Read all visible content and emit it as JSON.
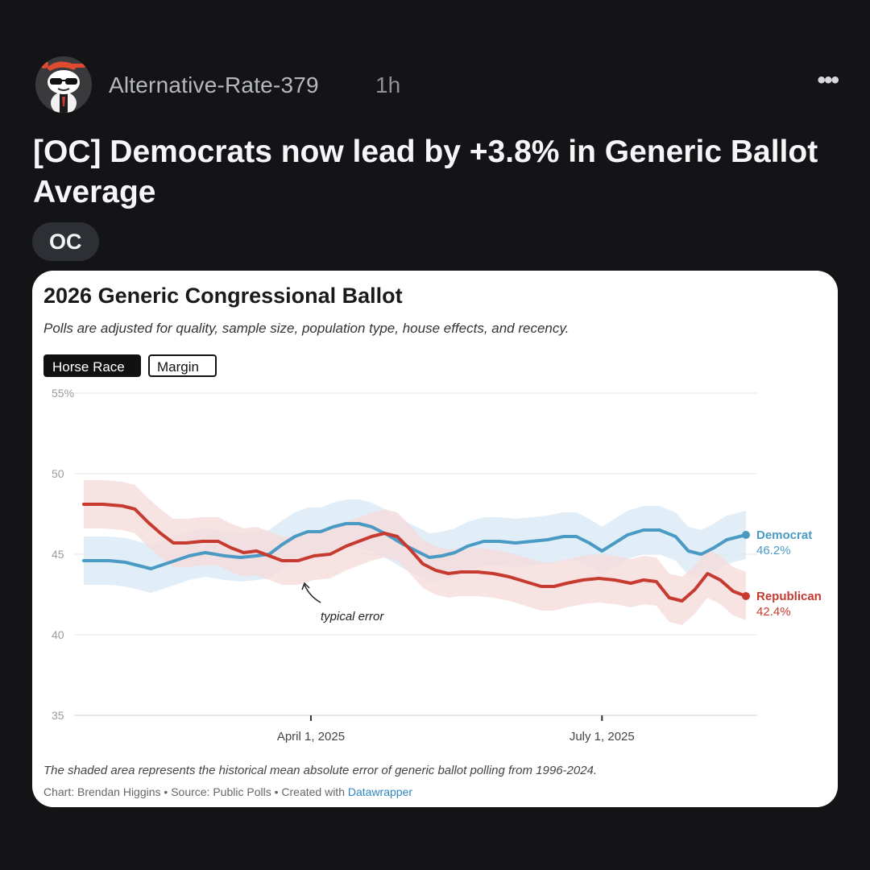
{
  "post": {
    "username": "Alternative-Rate-379",
    "time": "1h",
    "more_icon": "more-horizontal-icon",
    "title": "[OC] Democrats now lead by +3.8% in Generic Ballot Average",
    "flair": "OC"
  },
  "card": {
    "title": "2026 Generic Congressional Ballot",
    "subtitle": "Polls are adjusted for quality, sample size, population type, house effects, and recency.",
    "tabs": {
      "horse_race": "Horse Race",
      "margin": "Margin"
    },
    "note": "The shaded area represents the historical mean absolute error of generic ballot polling from 1996-2024.",
    "credit_prefix": "Chart: Brendan Higgins • Source: Public Polls • Created with ",
    "credit_link": "Datawrapper"
  },
  "chart_data": {
    "type": "line",
    "title": "2026 Generic Congressional Ballot",
    "subtitle": "Polls are adjusted for quality, sample size, population type, house effects, and recency.",
    "y_ticks": [
      "55%",
      "50",
      "45",
      "40",
      "35"
    ],
    "ylim": [
      35,
      55
    ],
    "x_range": [
      "2025-01-20",
      "2025-08-15"
    ],
    "x_ticks": [
      {
        "date": "2025-04-01",
        "label": "April 1, 2025"
      },
      {
        "date": "2025-07-01",
        "label": "July 1, 2025"
      }
    ],
    "error_band": 1.5,
    "annotation": {
      "text": "typical error"
    },
    "series": [
      {
        "name": "Democrat",
        "end_label": "46.2%",
        "color": "#4a9ac4",
        "band_color": "#d7e8f6",
        "points": [
          [
            "2025-01-20",
            44.6
          ],
          [
            "2025-01-28",
            44.6
          ],
          [
            "2025-02-02",
            44.5
          ],
          [
            "2025-02-06",
            44.3
          ],
          [
            "2025-02-10",
            44.1
          ],
          [
            "2025-02-16",
            44.5
          ],
          [
            "2025-02-22",
            44.9
          ],
          [
            "2025-02-27",
            45.1
          ],
          [
            "2025-03-05",
            44.9
          ],
          [
            "2025-03-10",
            44.8
          ],
          [
            "2025-03-15",
            44.9
          ],
          [
            "2025-03-19",
            45.0
          ],
          [
            "2025-03-23",
            45.6
          ],
          [
            "2025-03-27",
            46.1
          ],
          [
            "2025-03-31",
            46.4
          ],
          [
            "2025-04-04",
            46.4
          ],
          [
            "2025-04-08",
            46.7
          ],
          [
            "2025-04-12",
            46.9
          ],
          [
            "2025-04-16",
            46.9
          ],
          [
            "2025-04-20",
            46.7
          ],
          [
            "2025-04-25",
            46.2
          ],
          [
            "2025-04-30",
            45.6
          ],
          [
            "2025-05-04",
            45.2
          ],
          [
            "2025-05-08",
            44.8
          ],
          [
            "2025-05-12",
            44.9
          ],
          [
            "2025-05-16",
            45.1
          ],
          [
            "2025-05-20",
            45.5
          ],
          [
            "2025-05-25",
            45.8
          ],
          [
            "2025-05-30",
            45.8
          ],
          [
            "2025-06-04",
            45.7
          ],
          [
            "2025-06-09",
            45.8
          ],
          [
            "2025-06-14",
            45.9
          ],
          [
            "2025-06-19",
            46.1
          ],
          [
            "2025-06-23",
            46.1
          ],
          [
            "2025-06-27",
            45.7
          ],
          [
            "2025-07-01",
            45.2
          ],
          [
            "2025-07-05",
            45.7
          ],
          [
            "2025-07-09",
            46.2
          ],
          [
            "2025-07-14",
            46.5
          ],
          [
            "2025-07-19",
            46.5
          ],
          [
            "2025-07-24",
            46.1
          ],
          [
            "2025-07-28",
            45.2
          ],
          [
            "2025-08-01",
            45.0
          ],
          [
            "2025-08-05",
            45.4
          ],
          [
            "2025-08-09",
            45.9
          ],
          [
            "2025-08-13",
            46.1
          ],
          [
            "2025-08-15",
            46.2
          ]
        ]
      },
      {
        "name": "Republican",
        "end_label": "42.4%",
        "color": "#c63a2f",
        "band_color": "#f6dada",
        "points": [
          [
            "2025-01-20",
            48.1
          ],
          [
            "2025-01-26",
            48.1
          ],
          [
            "2025-02-01",
            48.0
          ],
          [
            "2025-02-05",
            47.8
          ],
          [
            "2025-02-09",
            47.0
          ],
          [
            "2025-02-13",
            46.3
          ],
          [
            "2025-02-17",
            45.7
          ],
          [
            "2025-02-21",
            45.7
          ],
          [
            "2025-02-26",
            45.8
          ],
          [
            "2025-03-03",
            45.8
          ],
          [
            "2025-03-07",
            45.4
          ],
          [
            "2025-03-11",
            45.1
          ],
          [
            "2025-03-15",
            45.2
          ],
          [
            "2025-03-19",
            44.9
          ],
          [
            "2025-03-23",
            44.6
          ],
          [
            "2025-03-28",
            44.6
          ],
          [
            "2025-04-02",
            44.9
          ],
          [
            "2025-04-07",
            45.0
          ],
          [
            "2025-04-12",
            45.5
          ],
          [
            "2025-04-16",
            45.8
          ],
          [
            "2025-04-20",
            46.1
          ],
          [
            "2025-04-24",
            46.3
          ],
          [
            "2025-04-28",
            46.1
          ],
          [
            "2025-05-02",
            45.3
          ],
          [
            "2025-05-06",
            44.4
          ],
          [
            "2025-05-10",
            44.0
          ],
          [
            "2025-05-14",
            43.8
          ],
          [
            "2025-05-18",
            43.9
          ],
          [
            "2025-05-23",
            43.9
          ],
          [
            "2025-05-28",
            43.8
          ],
          [
            "2025-06-02",
            43.6
          ],
          [
            "2025-06-07",
            43.3
          ],
          [
            "2025-06-12",
            43.0
          ],
          [
            "2025-06-16",
            43.0
          ],
          [
            "2025-06-20",
            43.2
          ],
          [
            "2025-06-25",
            43.4
          ],
          [
            "2025-06-30",
            43.5
          ],
          [
            "2025-07-05",
            43.4
          ],
          [
            "2025-07-10",
            43.2
          ],
          [
            "2025-07-14",
            43.4
          ],
          [
            "2025-07-18",
            43.3
          ],
          [
            "2025-07-22",
            42.3
          ],
          [
            "2025-07-26",
            42.1
          ],
          [
            "2025-07-30",
            42.8
          ],
          [
            "2025-08-03",
            43.8
          ],
          [
            "2025-08-07",
            43.4
          ],
          [
            "2025-08-11",
            42.7
          ],
          [
            "2025-08-15",
            42.4
          ]
        ]
      }
    ]
  }
}
